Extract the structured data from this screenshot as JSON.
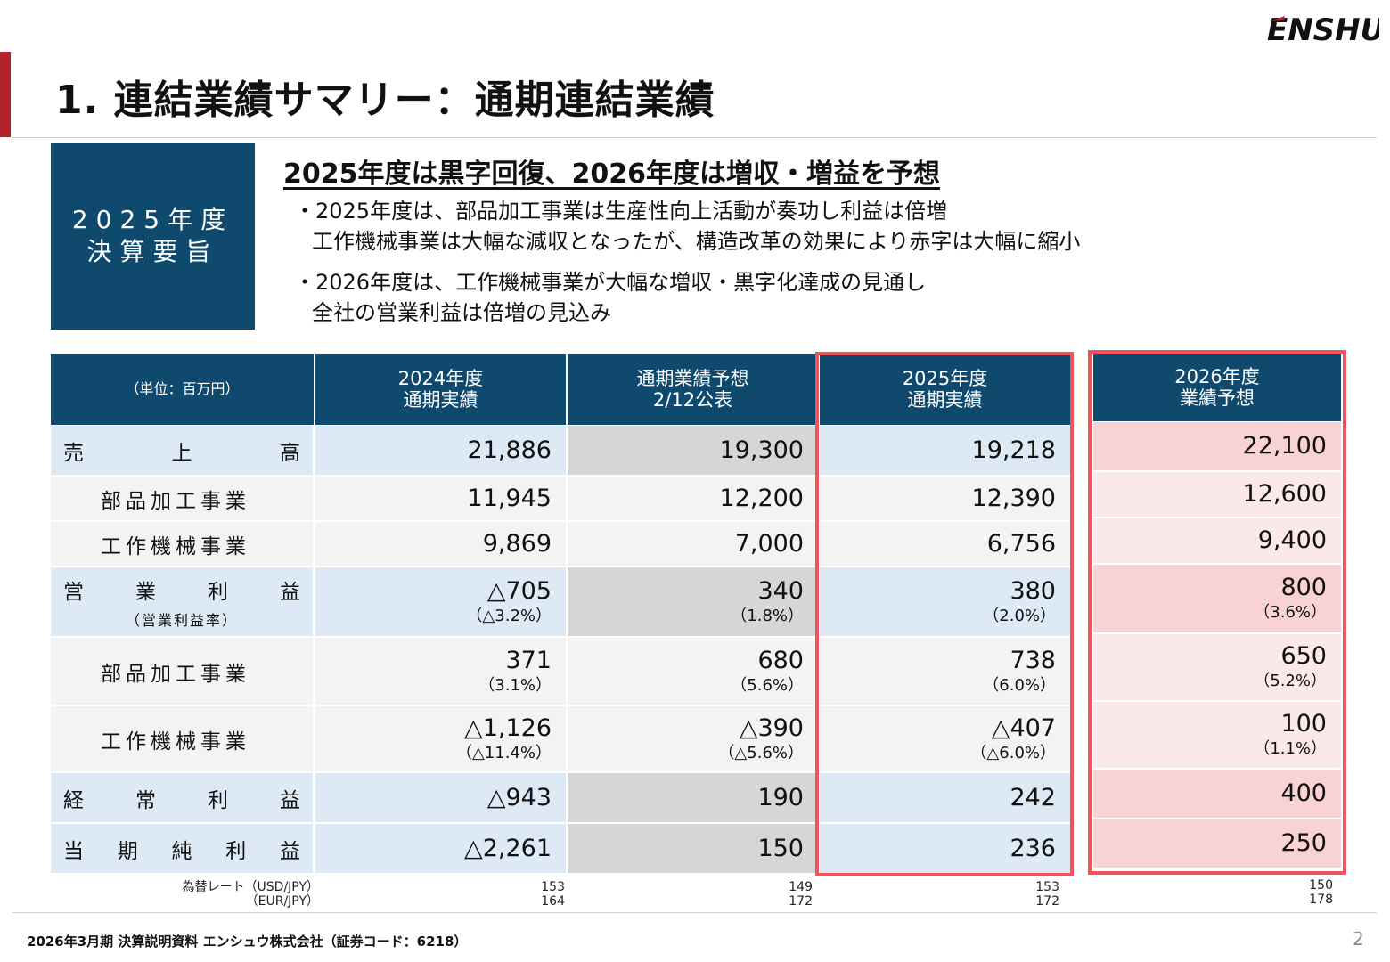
{
  "logo_text": "ENSHU",
  "page_title": "1. 連結業績サマリー：通期連結業績",
  "summary_box": {
    "line1": "2025年度",
    "line2": "決算要旨"
  },
  "headline": "2025年度は黒字回復、2026年度は増収・増益を予想",
  "bullets": [
    {
      "line1": "・2025年度は、部品加工事業は生産性向上活動が奏功し利益は倍増",
      "line2": "工作機械事業は大幅な減収となったが、構造改革の効果により赤字は大幅に縮小"
    },
    {
      "line1": "・2026年度は、工作機械事業が大幅な増収・黒字化達成の見通し",
      "line2": "全社の営業利益は倍増の見込み"
    }
  ],
  "table": {
    "unit_label": "（単位：百万円）",
    "columns": [
      {
        "line1": "2024年度",
        "line2": "通期実績"
      },
      {
        "line1": "通期業績予想",
        "line2": "2/12公表"
      },
      {
        "line1": "2025年度",
        "line2": "通期実績"
      },
      {
        "line1": "2026年度",
        "line2": "業績予想"
      }
    ],
    "rows": [
      {
        "label": "売上高",
        "chars": [
          "売",
          "上",
          "高"
        ],
        "values": [
          "21,886",
          "19,300",
          "19,218",
          "22,100"
        ]
      },
      {
        "label": "部品加工事業",
        "values": [
          "11,945",
          "12,200",
          "12,390",
          "12,600"
        ]
      },
      {
        "label": "工作機械事業",
        "values": [
          "9,869",
          "7,000",
          "6,756",
          "9,400"
        ]
      },
      {
        "label": "営業利益",
        "chars": [
          "営",
          "業",
          "利",
          "益"
        ],
        "sublabel": "（営業利益率）",
        "values": [
          "△705",
          "340",
          "380",
          "800"
        ],
        "pcts": [
          "（△3.2%）",
          "（1.8%）",
          "（2.0%）",
          "（3.6%）"
        ]
      },
      {
        "label": "部品加工事業",
        "values": [
          "371",
          "680",
          "738",
          "650"
        ],
        "pcts": [
          "（3.1%）",
          "（5.6%）",
          "（6.0%）",
          "（5.2%）"
        ]
      },
      {
        "label": "工作機械事業",
        "values": [
          "△1,126",
          "△390",
          "△407",
          "100"
        ],
        "pcts": [
          "（△11.4%）",
          "（△5.6%）",
          "（△6.0%）",
          "（1.1%）"
        ]
      },
      {
        "label": "経常利益",
        "chars": [
          "経",
          "常",
          "利",
          "益"
        ],
        "values": [
          "△943",
          "190",
          "242",
          "400"
        ]
      },
      {
        "label": "当期純利益",
        "chars": [
          "当",
          "期",
          "純",
          "利",
          "益"
        ],
        "values": [
          "△2,261",
          "150",
          "236",
          "250"
        ]
      }
    ]
  },
  "fx": {
    "label1": "為替レート（USD/JPY）",
    "label2": "（EUR/JPY）",
    "usd": [
      "153",
      "149",
      "153",
      "150"
    ],
    "eur": [
      "164",
      "172",
      "172",
      "178"
    ]
  },
  "footer": "2026年3月期 決算説明資料 エンシュウ株式会社（証券コード：6218）",
  "page_number": "2",
  "colors": {
    "header_navy": "#0f4a6e",
    "highlight_red": "#f0535a",
    "accent_red": "#b3232b"
  }
}
